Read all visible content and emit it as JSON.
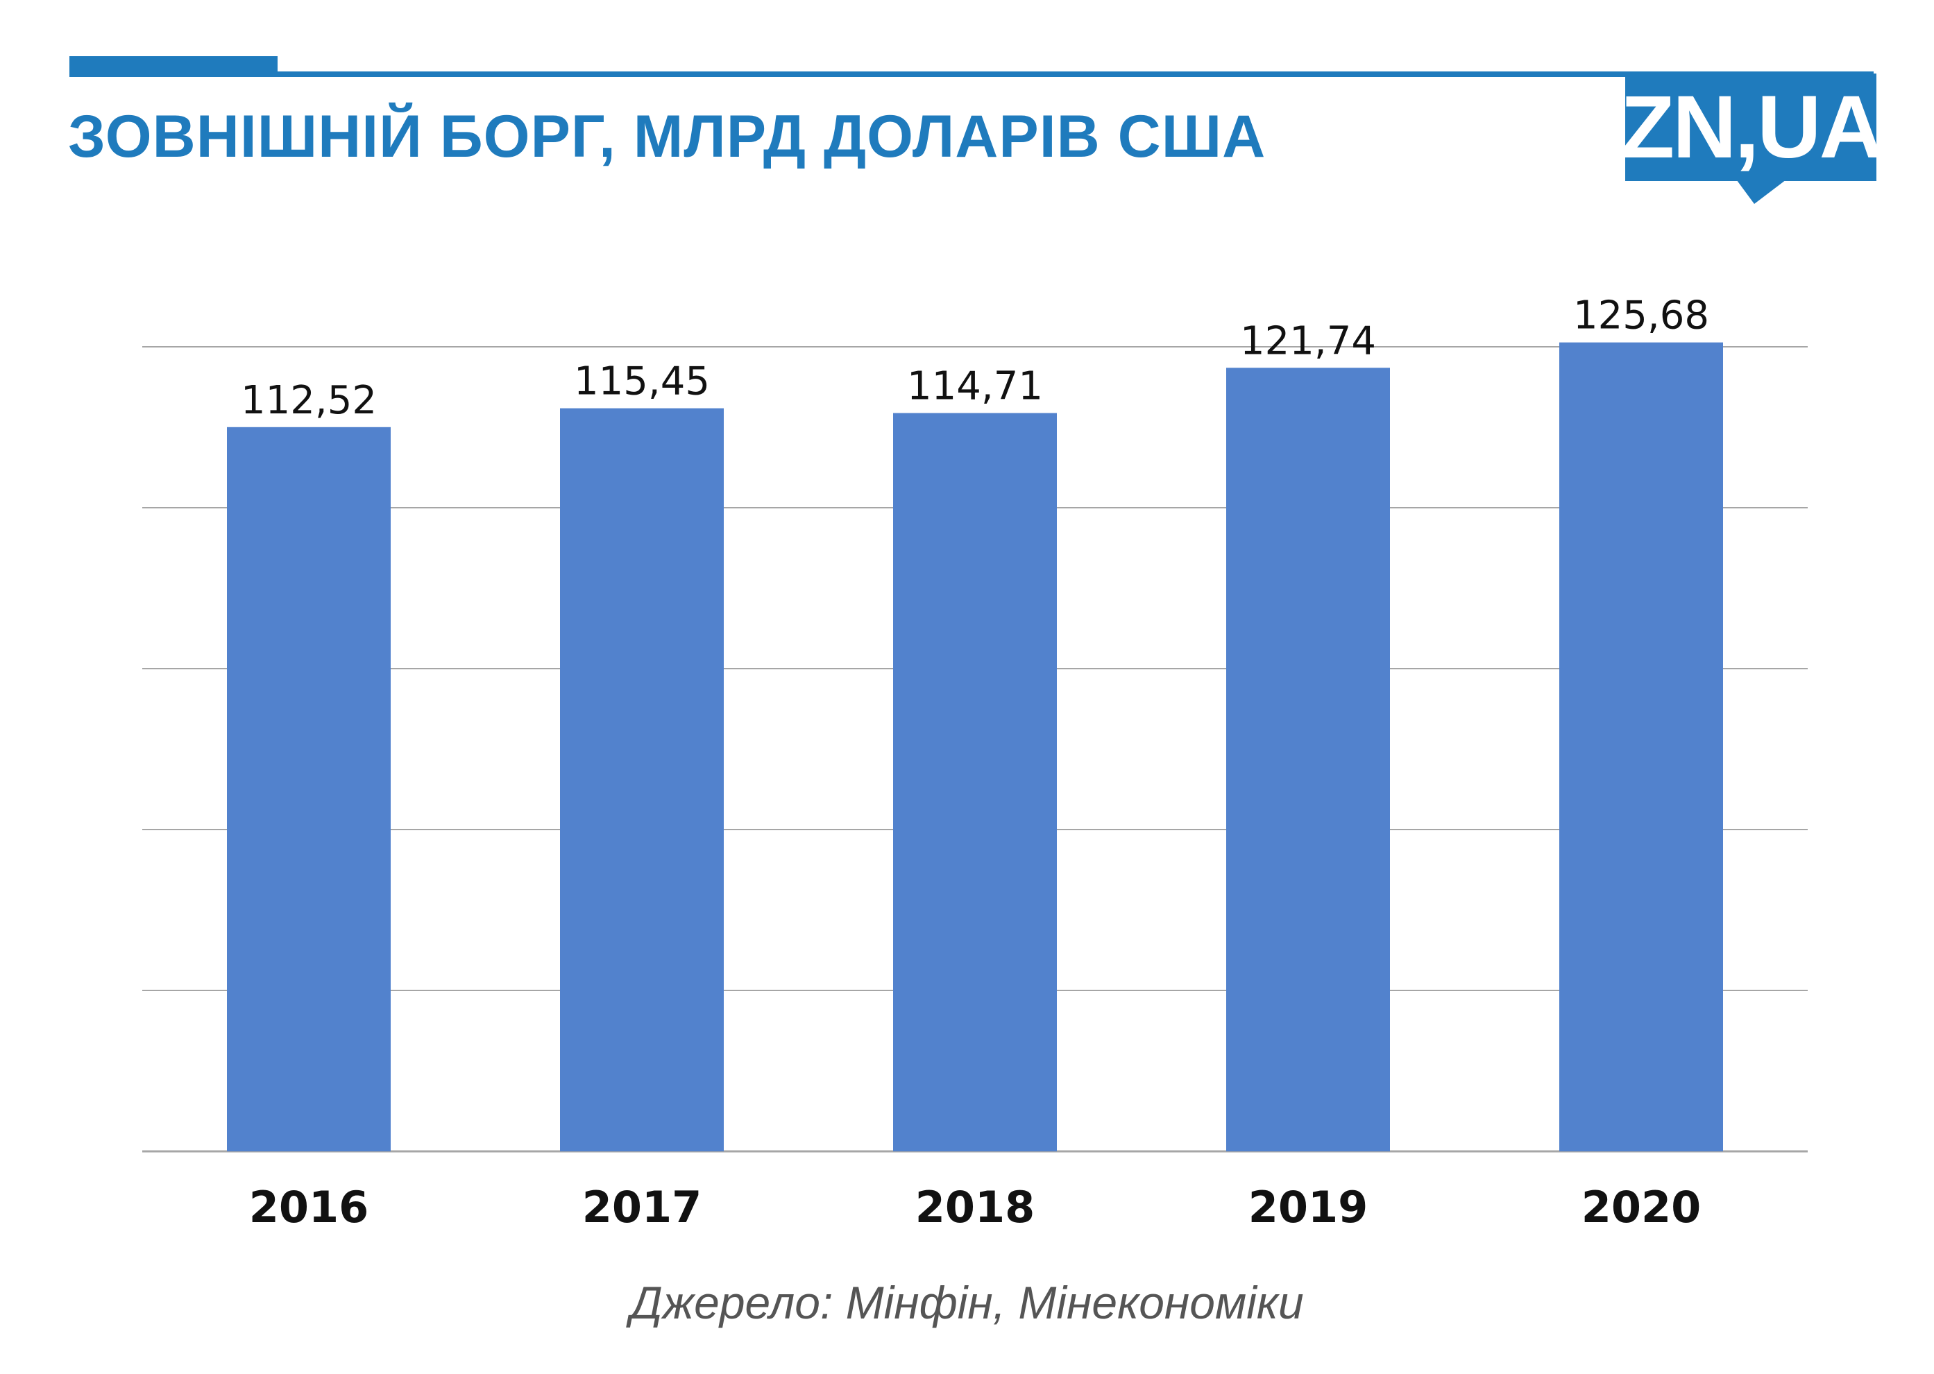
{
  "header": {
    "title": "ЗОВНІШНІЙ БОРГ, МЛРД ДОЛАРІВ США",
    "logo_text": "ZN,UA"
  },
  "colors": {
    "accent": "#1f7bbd",
    "bar": "#5282cd",
    "gridline": "#a6a6a6",
    "source_text": "#555555"
  },
  "chart_data": {
    "type": "bar",
    "categories": [
      "2016",
      "2017",
      "2018",
      "2019",
      "2020"
    ],
    "values": [
      112.52,
      115.45,
      114.71,
      121.74,
      125.68
    ],
    "value_labels": [
      "112,52",
      "115,45",
      "114,71",
      "121,74",
      "125,68"
    ],
    "title": "ЗОВНІШНІЙ БОРГ, МЛРД ДОЛАРІВ США",
    "xlabel": "",
    "ylabel": "",
    "ylim": [
      0,
      125
    ],
    "yticks": [
      0,
      25,
      50,
      75,
      100,
      125
    ],
    "ytick_labels_shown": false,
    "grid": true,
    "legend": "none"
  },
  "footer": {
    "source": "Джерело: Мінфін, Мінекономіки"
  }
}
